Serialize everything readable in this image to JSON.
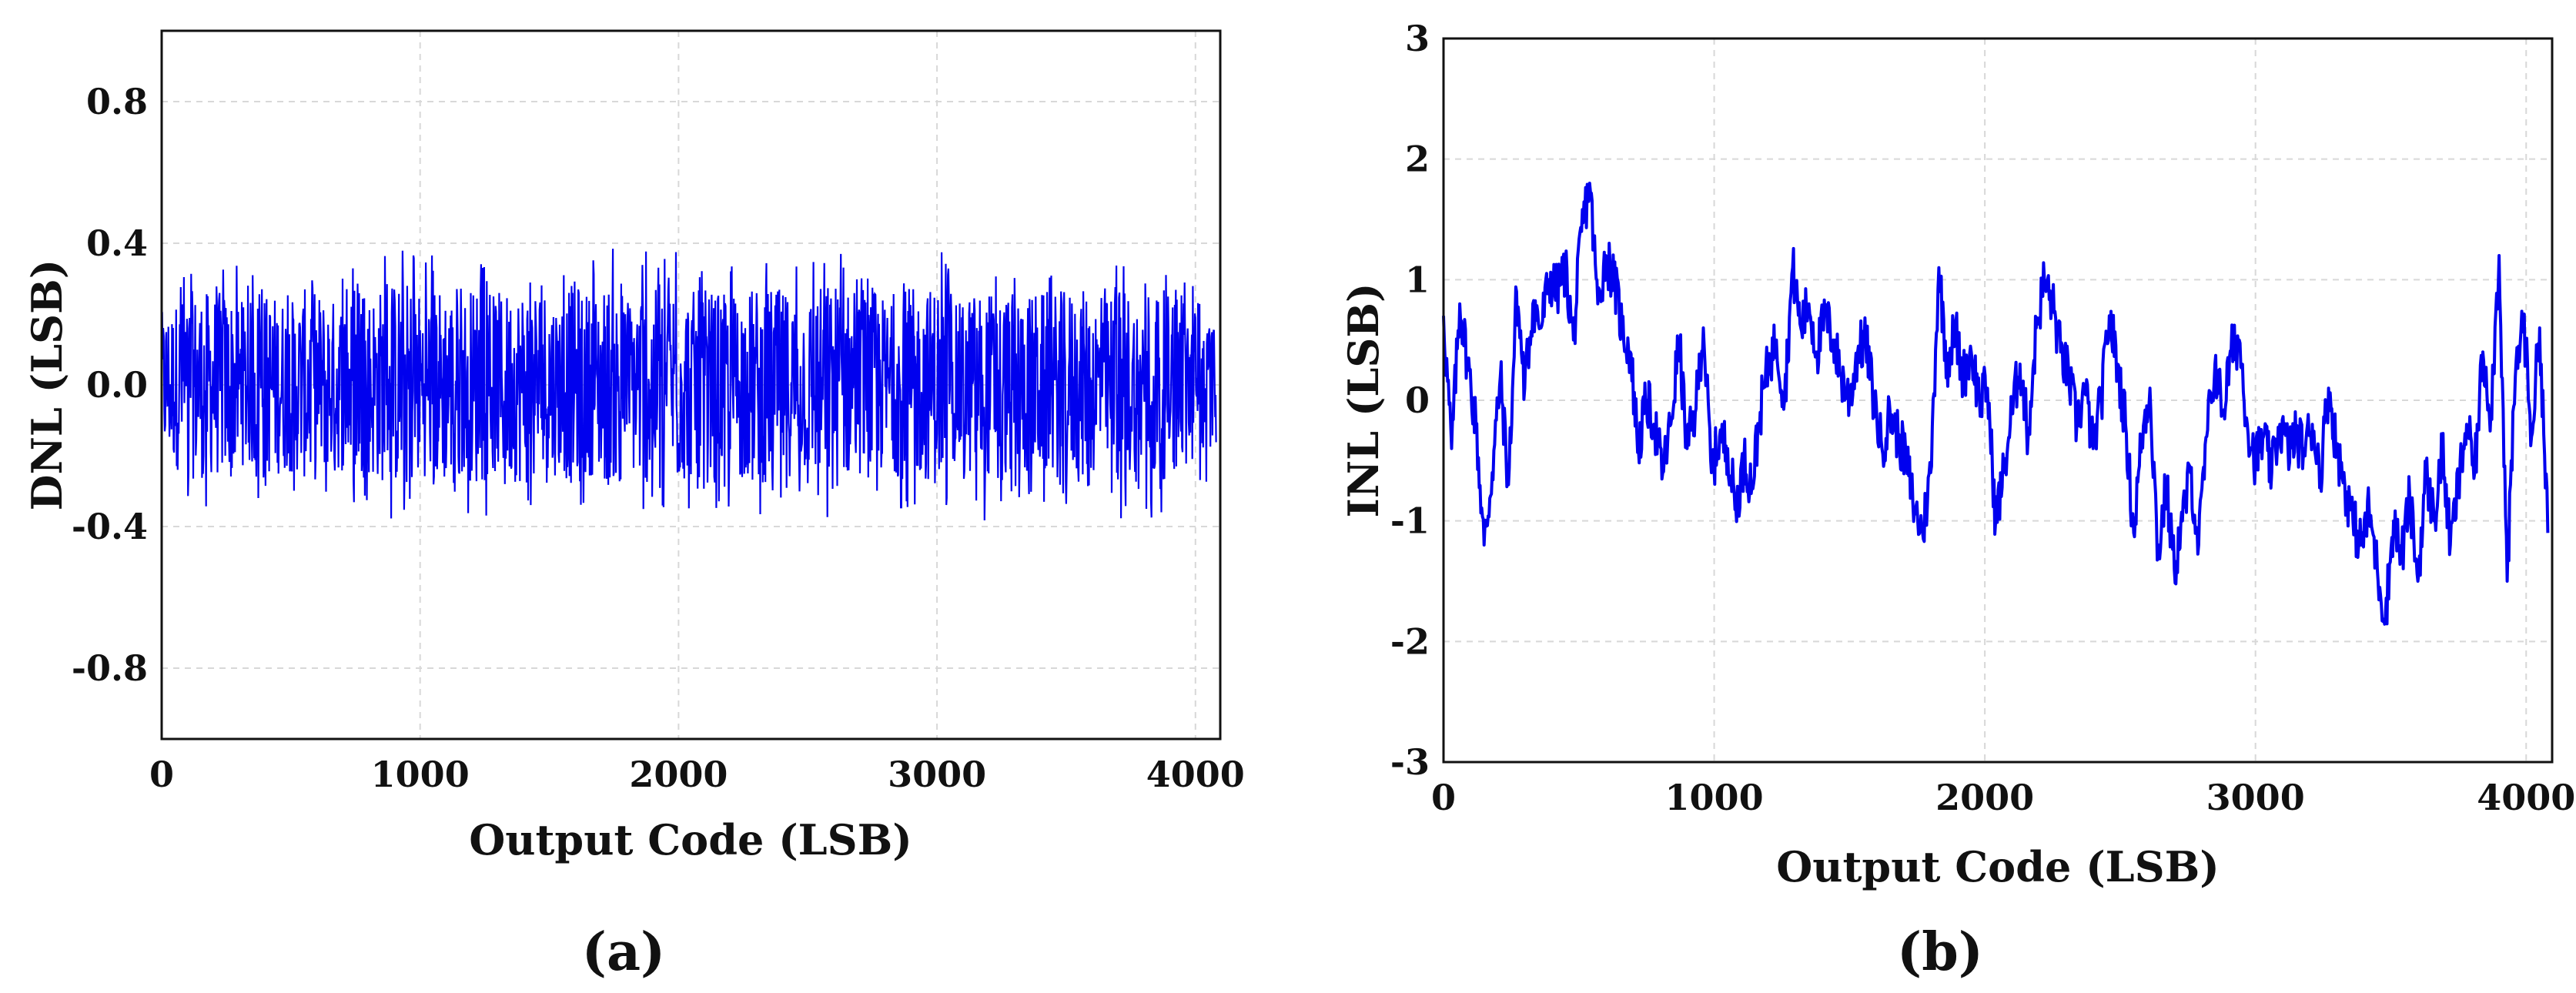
{
  "chart_data": [
    {
      "type": "line",
      "panel_label": "a",
      "xlabel": "Output Code (LSB)",
      "ylabel": "DNL (LSB)",
      "xlim": [
        0,
        4096
      ],
      "ylim": [
        -1.0,
        1.0
      ],
      "xticks": [
        0,
        1000,
        2000,
        3000,
        4000
      ],
      "xtick_labels": [
        "0",
        "1000",
        "2000",
        "3000",
        "4000"
      ],
      "yticks": [
        -0.8,
        -0.4,
        0.0,
        0.4,
        0.8
      ],
      "ytick_labels": [
        "-0.8",
        "-0.4",
        "0.0",
        "0.4",
        "0.8"
      ],
      "grid": true,
      "color": "#0000ee",
      "series": [
        {
          "x": [
            0,
            64,
            128,
            192,
            256,
            320,
            384,
            448,
            512,
            576,
            640,
            704,
            768,
            832,
            896,
            960,
            1024,
            1088,
            1152,
            1216,
            1280,
            1344,
            1408,
            1472,
            1536,
            1600,
            1664,
            1728,
            1792,
            1856,
            1920,
            1984,
            2048,
            2112,
            2176,
            2240,
            2304,
            2368,
            2432,
            2496,
            2560,
            2624,
            2688,
            2752,
            2816,
            2880,
            2944,
            3008,
            3072,
            3136,
            3200,
            3264,
            3328,
            3392,
            3456,
            3520,
            3584,
            3648,
            3712,
            3776,
            3840,
            3904,
            3968,
            4032,
            4080
          ],
          "y_max": [
            0.25,
            0.3,
            0.42,
            0.32,
            0.38,
            0.3,
            0.35,
            0.28,
            0.33,
            0.38,
            0.3,
            0.36,
            0.32,
            0.4,
            0.38,
            0.43,
            0.36,
            0.4,
            0.3,
            0.38,
            0.33,
            0.41,
            0.35,
            0.4,
            0.31,
            0.39,
            0.36,
            0.42,
            0.3,
            0.4,
            0.37,
            0.43,
            0.35,
            0.4,
            0.3,
            0.42,
            0.34,
            0.4,
            0.33,
            0.38,
            0.35,
            0.41,
            0.32,
            0.38,
            0.3,
            0.34,
            0.36,
            0.4,
            0.3,
            0.35,
            0.32,
            0.38,
            0.3,
            0.36,
            0.4,
            0.32,
            0.35,
            0.3,
            0.42,
            0.33,
            0.38,
            0.3,
            0.36,
            0.22,
            0.2
          ],
          "y_min": [
            -0.3,
            -0.35,
            -0.3,
            -0.38,
            -0.33,
            -0.3,
            -0.36,
            -0.4,
            -0.32,
            -0.38,
            -0.35,
            -0.3,
            -0.37,
            -0.33,
            -0.4,
            -0.36,
            -0.32,
            -0.38,
            -0.34,
            -0.4,
            -0.36,
            -0.3,
            -0.42,
            -0.38,
            -0.35,
            -0.4,
            -0.32,
            -0.36,
            -0.3,
            -0.38,
            -0.34,
            -0.4,
            -0.36,
            -0.32,
            -0.38,
            -0.3,
            -0.4,
            -0.34,
            -0.36,
            -0.3,
            -0.42,
            -0.38,
            -0.33,
            -0.37,
            -0.32,
            -0.4,
            -0.35,
            -0.38,
            -0.3,
            -0.36,
            -0.4,
            -0.32,
            -0.38,
            -0.35,
            -0.3,
            -0.4,
            -0.36,
            -0.33,
            -0.38,
            -0.3,
            -0.42,
            -0.36,
            -0.33,
            -0.28,
            -0.26
          ]
        }
      ]
    },
    {
      "type": "line",
      "panel_label": "b",
      "xlabel": "Output Code (LSB)",
      "ylabel": "INL (LSB)",
      "xlim": [
        0,
        4096
      ],
      "ylim": [
        -3,
        3
      ],
      "xticks": [
        0,
        1000,
        2000,
        3000,
        4000
      ],
      "xtick_labels": [
        "0",
        "1000",
        "2000",
        "3000",
        "4000"
      ],
      "yticks": [
        -3,
        -2,
        -1,
        0,
        1,
        2,
        3
      ],
      "ytick_labels": [
        "-3",
        "-2",
        "-1",
        "0",
        "1",
        "2",
        "3"
      ],
      "grid": true,
      "color": "#0000ee",
      "series": [
        {
          "x": [
            0,
            30,
            60,
            90,
            120,
            150,
            180,
            210,
            240,
            270,
            300,
            330,
            360,
            390,
            420,
            450,
            480,
            510,
            540,
            570,
            600,
            630,
            660,
            690,
            720,
            750,
            780,
            810,
            840,
            870,
            900,
            930,
            960,
            990,
            1020,
            1050,
            1080,
            1110,
            1140,
            1170,
            1200,
            1230,
            1260,
            1290,
            1320,
            1350,
            1380,
            1410,
            1440,
            1470,
            1500,
            1530,
            1560,
            1590,
            1620,
            1650,
            1680,
            1710,
            1740,
            1770,
            1800,
            1830,
            1860,
            1890,
            1920,
            1950,
            1980,
            2010,
            2040,
            2070,
            2100,
            2130,
            2160,
            2190,
            2220,
            2250,
            2280,
            2310,
            2340,
            2370,
            2400,
            2430,
            2460,
            2490,
            2520,
            2550,
            2580,
            2610,
            2640,
            2670,
            2700,
            2730,
            2760,
            2790,
            2820,
            2850,
            2880,
            2910,
            2940,
            2970,
            3000,
            3030,
            3060,
            3090,
            3120,
            3150,
            3180,
            3210,
            3240,
            3270,
            3300,
            3330,
            3360,
            3390,
            3420,
            3450,
            3480,
            3510,
            3540,
            3570,
            3600,
            3630,
            3660,
            3690,
            3720,
            3750,
            3780,
            3810,
            3840,
            3870,
            3900,
            3930,
            3960,
            3990,
            4020,
            4050,
            4080
          ],
          "y": [
            0.7,
            -0.4,
            0.8,
            0.3,
            -0.2,
            -1.2,
            -0.6,
            0.2,
            -0.7,
            0.9,
            0.1,
            0.8,
            0.6,
            1.0,
            0.9,
            1.1,
            0.5,
            1.4,
            1.8,
            0.8,
            1.2,
            1.0,
            0.6,
            0.4,
            -0.4,
            0.0,
            -0.2,
            -0.6,
            -0.2,
            0.5,
            -0.4,
            -0.1,
            0.6,
            -0.6,
            -0.3,
            -0.4,
            -0.9,
            -0.5,
            -0.7,
            -0.1,
            0.3,
            0.5,
            0.0,
            1.1,
            0.6,
            0.8,
            0.4,
            0.7,
            0.5,
            0.2,
            0.0,
            0.4,
            0.5,
            0.0,
            -0.4,
            -0.1,
            -0.3,
            -0.5,
            -0.9,
            -1.1,
            -0.6,
            1.1,
            0.3,
            0.6,
            0.2,
            0.4,
            0.0,
            0.1,
            -1.0,
            -0.6,
            -0.1,
            0.3,
            -0.3,
            0.6,
            1.0,
            0.8,
            0.4,
            0.2,
            -0.2,
            0.1,
            -0.4,
            0.0,
            0.7,
            0.3,
            -0.2,
            -1.1,
            -0.3,
            0.1,
            -1.3,
            -0.7,
            -1.4,
            -1.0,
            -0.6,
            -1.2,
            -0.3,
            0.3,
            -0.1,
            0.4,
            0.5,
            -0.2,
            -0.5,
            -0.3,
            -0.6,
            -0.2,
            -0.4,
            -0.3,
            -0.4,
            -0.2,
            -0.6,
            0.1,
            -0.4,
            -0.7,
            -1.0,
            -1.2,
            -0.9,
            -1.4,
            -1.8,
            -1.0,
            -1.3,
            -0.8,
            -1.5,
            -0.6,
            -1.0,
            -0.4,
            -1.2,
            -0.7,
            -0.2,
            -0.6,
            0.4,
            -0.1,
            1.2,
            -1.5,
            0.2,
            0.7,
            -0.3,
            0.6,
            -1.1
          ]
        }
      ]
    },
    {
      "captions": [
        "(a)",
        "(b)"
      ]
    }
  ]
}
